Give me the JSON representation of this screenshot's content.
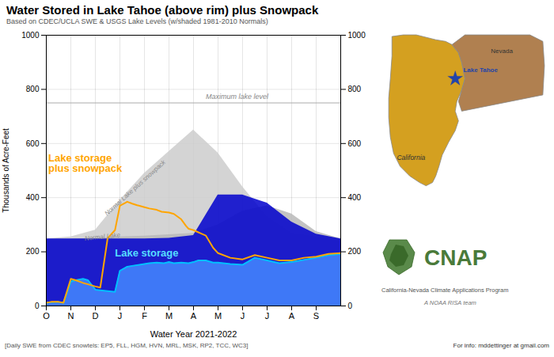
{
  "chart_data": {
    "type": "line",
    "title": "Water Stored in Lake Tahoe (above rim) plus Snowpack",
    "subtitle": "Based on CDEC/UCLA SWE & USGS Lake Levels (w/shaded 1981-2010 Normals)",
    "xlabel": "Water Year 2021-2022",
    "ylabel": "Thousands of Acre-Feet",
    "xlim": [
      0,
      12
    ],
    "xticks": [
      {
        "value": 0,
        "label": "O"
      },
      {
        "value": 1,
        "label": "N"
      },
      {
        "value": 2,
        "label": "D"
      },
      {
        "value": 3,
        "label": "J"
      },
      {
        "value": 4,
        "label": "F"
      },
      {
        "value": 5,
        "label": "M"
      },
      {
        "value": 6,
        "label": "A"
      },
      {
        "value": 7,
        "label": "M"
      },
      {
        "value": 8,
        "label": "J"
      },
      {
        "value": 9,
        "label": "J"
      },
      {
        "value": 10,
        "label": "A"
      },
      {
        "value": 11,
        "label": "S"
      }
    ],
    "ylim": [
      0,
      1000
    ],
    "yticks": [
      0,
      200,
      400,
      600,
      800,
      1000
    ],
    "y2lim": [
      0,
      1000
    ],
    "y2ticks": [
      0,
      200,
      400,
      600,
      800,
      1000
    ],
    "grid": true,
    "series": [
      {
        "type": "area",
        "color": "#CCCCCC",
        "x": [
          0,
          1,
          2,
          3,
          4,
          5,
          6,
          7,
          8,
          9,
          10,
          11,
          12
        ],
        "values": [
          248,
          255,
          280,
          390,
          490,
          570,
          650,
          565,
          440,
          330,
          270,
          255,
          248
        ]
      },
      {
        "type": "area",
        "color": "#B8B8B8",
        "x": [
          0,
          1,
          2,
          3,
          4,
          5,
          6,
          7,
          8,
          9,
          10,
          11,
          12
        ],
        "values": [
          245,
          247,
          250,
          255,
          258,
          263,
          268,
          300,
          350,
          370,
          340,
          275,
          248
        ]
      },
      {
        "type": "area",
        "color": "#0000CC",
        "x": [
          0,
          1,
          2,
          3,
          4,
          5,
          6,
          7,
          8,
          9,
          10,
          11,
          12
        ],
        "values": [
          248,
          248,
          248,
          248,
          248,
          250,
          260,
          410,
          410,
          380,
          310,
          265,
          248
        ]
      },
      {
        "type": "area",
        "color": "#4488FF",
        "x": [
          0,
          0.2,
          0.5,
          0.7,
          1.0,
          1.2,
          1.5,
          1.7,
          2.0,
          2.2,
          2.5,
          2.8,
          3.0,
          3.3,
          3.5,
          3.8,
          4.0,
          4.2,
          4.5,
          4.8,
          5.0,
          5.2,
          5.5,
          5.8,
          6.0,
          6.2,
          6.5,
          6.8,
          7.0,
          7.5,
          8.0,
          8.5,
          9.0,
          9.5,
          10.0,
          10.5,
          11.0,
          11.5,
          12.0
        ],
        "values": [
          12,
          14,
          15,
          12,
          90,
          95,
          100,
          95,
          60,
          58,
          55,
          52,
          130,
          145,
          148,
          152,
          155,
          158,
          160,
          158,
          162,
          158,
          160,
          158,
          162,
          168,
          168,
          160,
          160,
          155,
          152,
          178,
          168,
          158,
          162,
          170,
          178,
          188,
          192
        ]
      },
      {
        "type": "line",
        "color": "#00BFFF",
        "x": [
          0,
          0.2,
          0.5,
          0.7,
          1.0,
          1.2,
          1.5,
          1.7,
          2.0,
          2.2,
          2.5,
          2.8,
          3.0,
          3.3,
          3.5,
          3.8,
          4.0,
          4.2,
          4.5,
          4.8,
          5.0,
          5.2,
          5.5,
          5.8,
          6.0,
          6.2,
          6.5,
          6.8,
          7.0,
          7.5,
          8.0,
          8.5,
          9.0,
          9.5,
          10.0,
          10.5,
          11.0,
          11.5,
          12.0
        ],
        "values": [
          12,
          14,
          15,
          12,
          90,
          95,
          100,
          95,
          60,
          58,
          55,
          52,
          130,
          145,
          148,
          152,
          155,
          158,
          160,
          158,
          162,
          158,
          160,
          158,
          162,
          168,
          168,
          160,
          160,
          155,
          152,
          178,
          168,
          158,
          162,
          170,
          178,
          188,
          192
        ]
      },
      {
        "type": "line",
        "color": "#FFA500",
        "x": [
          0,
          0.2,
          0.5,
          0.7,
          1.0,
          1.2,
          1.5,
          1.7,
          2.0,
          2.2,
          2.5,
          2.8,
          3.0,
          3.2,
          3.3,
          3.5,
          3.7,
          3.8,
          4.0,
          4.2,
          4.5,
          4.7,
          5.0,
          5.2,
          5.5,
          5.7,
          5.8,
          6.0,
          6.2,
          6.3,
          6.5,
          6.8,
          7.0,
          7.5,
          8.0,
          8.5,
          9.0,
          9.5,
          10.0,
          10.5,
          11.0,
          11.5,
          12.0
        ],
        "values": [
          12,
          15,
          15,
          12,
          100,
          95,
          85,
          80,
          72,
          68,
          250,
          280,
          370,
          380,
          385,
          378,
          372,
          370,
          365,
          360,
          355,
          348,
          345,
          340,
          320,
          295,
          285,
          280,
          272,
          268,
          260,
          215,
          195,
          178,
          172,
          188,
          178,
          168,
          168,
          178,
          182,
          192,
          195
        ]
      }
    ],
    "annotations": [
      {
        "type": "hline",
        "y": 750,
        "color": "#AAAAAA",
        "text": "Maximum lake level"
      },
      {
        "text": "Normal Lake",
        "color": "#888888"
      },
      {
        "text": "Normal Lake plus snowpack",
        "color": "#888888"
      },
      {
        "text": "Lake storage",
        "color": "#55DDFF"
      },
      {
        "text": "Lake storage\nplus snowpack",
        "color": "#FFA500"
      }
    ],
    "notes": [
      "[Daily SWE from CDEC snowtels: EP5, FLL, HGM, HVN, MRL, MSK, RP2, TCC, WC3]",
      "For info: mddettinger at gmail.com"
    ],
    "map": {
      "labels": [
        "Lake Tahoe",
        "Nevada",
        "California"
      ],
      "colors": [
        "#2244AA",
        "#B08050",
        "#D4A020"
      ]
    },
    "logo": {
      "texts": [
        "CNAP",
        "California-Nevada Climate Applications Program",
        "A NOAA RISA team"
      ],
      "color": "#4A7A3A"
    }
  }
}
